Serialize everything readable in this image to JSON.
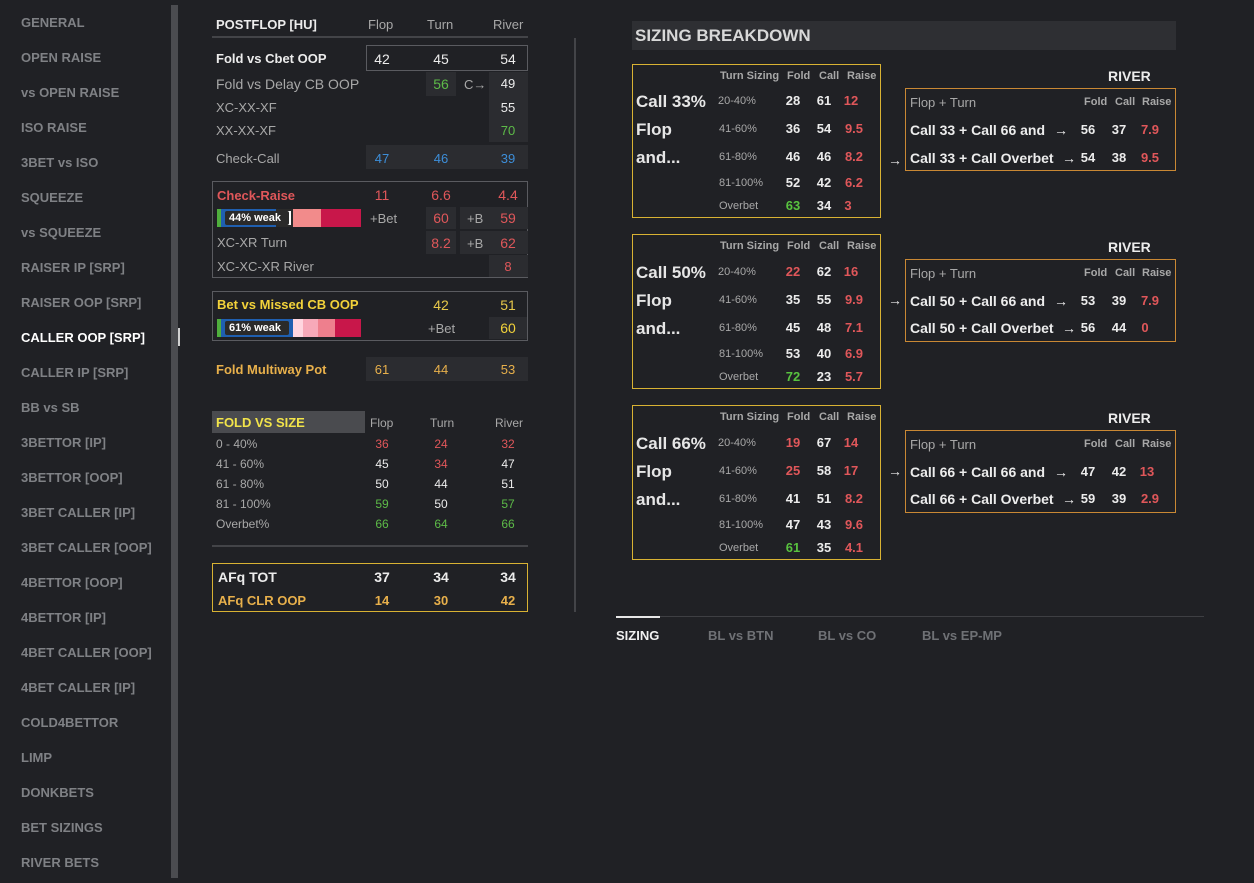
{
  "sidebar": {
    "items": [
      "GENERAL",
      "OPEN RAISE",
      "vs OPEN RAISE",
      "ISO RAISE",
      "3BET vs ISO",
      "SQUEEZE",
      "vs SQUEEZE",
      "RAISER IP [SRP]",
      "RAISER OOP [SRP]",
      "CALLER OOP [SRP]",
      "CALLER IP [SRP]",
      "BB vs SB",
      "3BETTOR [IP]",
      "3BETTOR [OOP]",
      "3BET CALLER [IP]",
      "3BET CALLER [OOP]",
      "4BETTOR [OOP]",
      "4BETTOR [IP]",
      "4BET CALLER [OOP]",
      "4BET CALLER [IP]",
      "COLD4BETTOR",
      "LIMP",
      "DONKBETS",
      "BET SIZINGS",
      "RIVER BETS"
    ],
    "active_index": 9
  },
  "postflop": {
    "title": "POSTFLOP [HU]",
    "col_flop": "Flop",
    "col_turn": "Turn",
    "col_river": "River",
    "fold_cbet": {
      "label": "Fold vs Cbet OOP",
      "flop": "42",
      "turn": "45",
      "river": "54"
    },
    "fold_delay": {
      "label": "Fold vs Delay CB OOP",
      "turn": "56",
      "arrow": "C→",
      "river": "49"
    },
    "xc_xx_xf": {
      "label": "XC-XX-XF",
      "river": "55"
    },
    "xx_xx_xf": {
      "label": "XX-XX-XF",
      "river": "70"
    },
    "check_call": {
      "label": "Check-Call",
      "flop": "47",
      "turn": "46",
      "river": "39"
    },
    "check_raise": {
      "label": "Check-Raise",
      "flop": "11",
      "turn": "6.6",
      "river": "4.4",
      "weak": "44% weak",
      "bet_label": "+Bet",
      "turn2": "60",
      "b_label": "+B",
      "river2": "59"
    },
    "xc_xr_turn": {
      "label": "XC-XR Turn",
      "turn": "8.2",
      "b_label": "+B",
      "river": "62"
    },
    "xc_xc_xr": {
      "label": "XC-XC-XR River",
      "river": "8"
    },
    "bet_missed": {
      "label": "Bet vs Missed CB OOP",
      "turn": "42",
      "river": "51",
      "weak": "61% weak",
      "bet_label": "+Bet",
      "river2": "60"
    },
    "fold_multiway": {
      "label": "Fold Multiway Pot",
      "flop": "61",
      "turn": "44",
      "river": "53"
    }
  },
  "fold_vs_size": {
    "title": "FOLD VS SIZE",
    "col_flop": "Flop",
    "col_turn": "Turn",
    "col_river": "River",
    "rows": [
      {
        "label": "0 - 40%",
        "flop": "36",
        "turn": "24",
        "river": "32"
      },
      {
        "label": "41 - 60%",
        "flop": "45",
        "turn": "34",
        "river": "47"
      },
      {
        "label": "61 - 80%",
        "flop": "50",
        "turn": "44",
        "river": "51"
      },
      {
        "label": "81 - 100%",
        "flop": "59",
        "turn": "50",
        "river": "57"
      },
      {
        "label": "Overbet%",
        "flop": "66",
        "turn": "64",
        "river": "66"
      }
    ]
  },
  "afq": {
    "tot": {
      "label": "AFq TOT",
      "flop": "37",
      "turn": "34",
      "river": "34"
    },
    "clr": {
      "label": "AFq CLR OOP",
      "flop": "14",
      "turn": "30",
      "river": "42"
    }
  },
  "sizing": {
    "title": "SIZING BREAKDOWN",
    "hdr_turn_sizing": "Turn Sizing",
    "hdr_fold": "Fold",
    "hdr_call": "Call",
    "hdr_raise": "Raise",
    "river_label": "RIVER",
    "flop_turn": "Flop + Turn",
    "arrow": "→",
    "blocks": [
      {
        "head1": "Call 33%",
        "head2": "Flop",
        "head3": "and...",
        "rows": [
          [
            "20-40%",
            "28",
            "61",
            "12"
          ],
          [
            "41-60%",
            "36",
            "54",
            "9.5"
          ],
          [
            "61-80%",
            "46",
            "46",
            "8.2"
          ],
          [
            "81-100%",
            "52",
            "42",
            "6.2"
          ],
          [
            "Overbet",
            "63",
            "34",
            "3"
          ]
        ],
        "river_rows": [
          [
            "Call 33 + Call 66 and",
            "→",
            "56",
            "37",
            "7.9"
          ],
          [
            "Call 33 + Call Overbet",
            "→",
            "54",
            "38",
            "9.5"
          ]
        ]
      },
      {
        "head1": "Call 50%",
        "head2": "Flop",
        "head3": "and...",
        "rows": [
          [
            "20-40%",
            "22",
            "62",
            "16"
          ],
          [
            "41-60%",
            "35",
            "55",
            "9.9"
          ],
          [
            "61-80%",
            "45",
            "48",
            "7.1"
          ],
          [
            "81-100%",
            "53",
            "40",
            "6.9"
          ],
          [
            "Overbet",
            "72",
            "23",
            "5.7"
          ]
        ],
        "river_rows": [
          [
            "Call 50 + Call 66 and",
            "→",
            "53",
            "39",
            "7.9"
          ],
          [
            "Call 50 + Call Overbet",
            "→",
            "56",
            "44",
            "0"
          ]
        ]
      },
      {
        "head1": "Call 66%",
        "head2": "Flop",
        "head3": "and...",
        "rows": [
          [
            "20-40%",
            "19",
            "67",
            "14"
          ],
          [
            "41-60%",
            "25",
            "58",
            "17"
          ],
          [
            "61-80%",
            "41",
            "51",
            "8.2"
          ],
          [
            "81-100%",
            "47",
            "43",
            "9.6"
          ],
          [
            "Overbet",
            "61",
            "35",
            "4.1"
          ]
        ],
        "river_rows": [
          [
            "Call 66 + Call 66 and",
            "→",
            "47",
            "42",
            "13"
          ],
          [
            "Call 66 + Call Overbet",
            "→",
            "59",
            "39",
            "2.9"
          ]
        ]
      }
    ]
  },
  "tabs": [
    "SIZING",
    "BL vs BTN",
    "BL vs CO",
    "BL vs EP-MP"
  ],
  "active_tab": 0
}
